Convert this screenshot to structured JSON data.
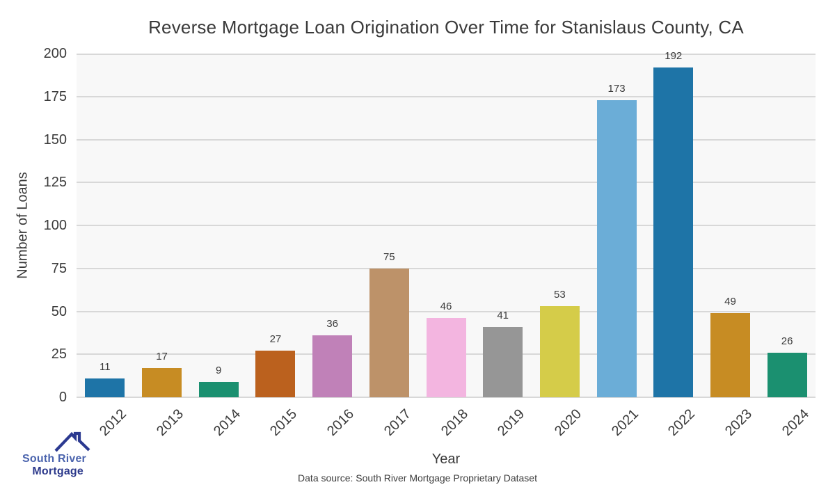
{
  "chart_data": {
    "type": "bar",
    "title": "Reverse Mortgage Loan Origination Over Time for Stanislaus County, CA",
    "xlabel": "Year",
    "ylabel": "Number of Loans",
    "categories": [
      "2012",
      "2013",
      "2014",
      "2015",
      "2016",
      "2017",
      "2018",
      "2019",
      "2020",
      "2021",
      "2022",
      "2023",
      "2024"
    ],
    "values": [
      11,
      17,
      9,
      27,
      36,
      75,
      46,
      41,
      53,
      173,
      192,
      49,
      26
    ],
    "bar_labels": [
      "11",
      "17",
      "9",
      "27",
      "36",
      "75",
      "46",
      "41",
      "53",
      "173",
      "192",
      "49",
      "26"
    ],
    "bar_colors": [
      "#1e74a7",
      "#c78c23",
      "#1b9070",
      "#bb611e",
      "#c081b8",
      "#bd9269",
      "#f3b5e0",
      "#969696",
      "#d5cc49",
      "#6badd7",
      "#1e74a7",
      "#c78c23",
      "#1b9070"
    ],
    "ylim": [
      0,
      200
    ],
    "yticks": [
      0,
      25,
      50,
      75,
      100,
      125,
      150,
      175,
      200
    ],
    "grid": "horizontal",
    "legend": "none",
    "plot_bg": "#f8f8f8",
    "grid_color": "#d8d8d8",
    "tick_color": "#3a3a3a"
  },
  "caption": "Data source: South River Mortgage Proprietary Dataset",
  "logo": {
    "line1": "South River",
    "line2": "Mortgage",
    "line1_color": "#4a63ad",
    "line2_color": "#2d3a8c",
    "roof_color": "#2b3990",
    "icon": "house-roof-icon"
  }
}
